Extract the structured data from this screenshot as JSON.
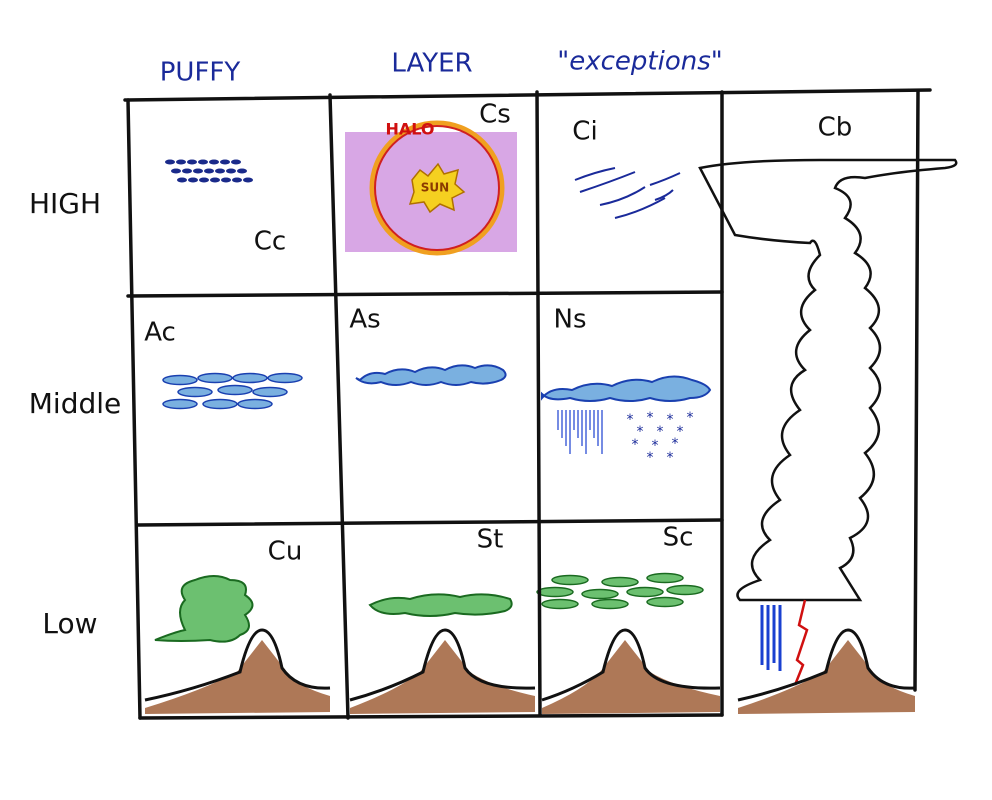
{
  "columns": [
    "PUFFY",
    "LAYER",
    "\"exceptions\""
  ],
  "rows": [
    "HIGH",
    "Middle",
    "Low"
  ],
  "cells": [
    [
      "Cc",
      "Cs",
      "Ci"
    ],
    [
      "Ac",
      "As",
      "Ns"
    ],
    [
      "Cu",
      "St",
      "Sc"
    ]
  ],
  "tall_cell": "Cb",
  "annotations": {
    "halo": "HALO",
    "sun": "SUN"
  }
}
